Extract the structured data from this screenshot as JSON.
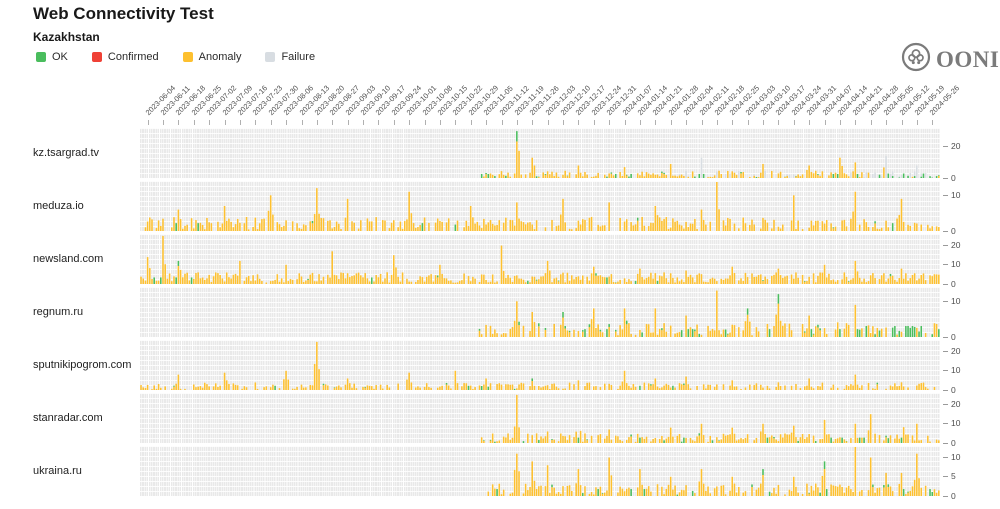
{
  "header": {
    "title": "Web Connectivity Test",
    "subtitle": "Kazakhstan"
  },
  "legend": [
    {
      "label": "OK",
      "color": "#4ABD5D"
    },
    {
      "label": "Confirmed",
      "color": "#EF4136"
    },
    {
      "label": "Anomaly",
      "color": "#FDC02F"
    },
    {
      "label": "Failure",
      "color": "#D8DDE2"
    }
  ],
  "logo": {
    "text": "OONI"
  },
  "chart_data": {
    "type": "bar",
    "title": "Web Connectivity Test",
    "subtitle": "Kazakhstan",
    "x_unit": "day (one stacked bar per day; x axis labeled weekly)",
    "legend_position": "top",
    "grid": true,
    "colors": {
      "ok": "#4ABD5D",
      "confirmed": "#EF4136",
      "anomaly": "#FDC02F",
      "failure": "#D8DDE2"
    },
    "x_tick_labels": [
      "2023-06-04",
      "2023-06-11",
      "2023-06-18",
      "2023-06-25",
      "2023-07-02",
      "2023-07-09",
      "2023-07-16",
      "2023-07-23",
      "2023-07-30",
      "2023-08-06",
      "2023-08-13",
      "2023-08-20",
      "2023-08-27",
      "2023-09-03",
      "2023-09-10",
      "2023-09-17",
      "2023-09-24",
      "2023-10-01",
      "2023-10-08",
      "2023-10-15",
      "2023-10-22",
      "2023-10-29",
      "2023-11-05",
      "2023-11-12",
      "2023-11-19",
      "2023-11-26",
      "2023-12-03",
      "2023-12-10",
      "2023-12-17",
      "2023-12-24",
      "2023-12-31",
      "2024-01-07",
      "2024-01-14",
      "2024-01-21",
      "2024-01-28",
      "2024-02-04",
      "2024-02-11",
      "2024-02-18",
      "2024-02-25",
      "2024-03-03",
      "2024-03-10",
      "2024-03-17",
      "2024-03-24",
      "2024-03-31",
      "2024-04-07",
      "2024-04-14",
      "2024-04-21",
      "2024-04-28",
      "2024-05-05",
      "2024-05-12",
      "2024-05-19",
      "2024-05-26"
    ],
    "sites": [
      {
        "name": "kz.tsargrad.tv",
        "ylim": 32,
        "yticks": [
          0,
          20
        ],
        "active_from_week": 22,
        "density": 0.78,
        "base": 2.6,
        "ok_ratio": 0.22,
        "spikes": [
          [
            24,
            30
          ],
          [
            25,
            13
          ],
          [
            28,
            8
          ],
          [
            31,
            7
          ],
          [
            34,
            9
          ],
          [
            36,
            13,
            "failure"
          ],
          [
            40,
            9
          ],
          [
            43,
            8
          ],
          [
            45,
            13
          ],
          [
            46,
            10
          ],
          [
            48,
            14,
            "failure"
          ],
          [
            50,
            8,
            "failure"
          ]
        ],
        "failure": {
          "from_week": 35,
          "ratio": 0.25,
          "heavy_from_week": 47,
          "heavy_ratio": 0.8
        }
      },
      {
        "name": "meduza.io",
        "ylim": 14,
        "yticks": [
          0,
          10
        ],
        "active_from_week": 0,
        "density": 0.72,
        "base": 2.2,
        "ok_ratio": 0.07,
        "spikes": [
          [
            2,
            6
          ],
          [
            5,
            7
          ],
          [
            8,
            10
          ],
          [
            11,
            12
          ],
          [
            13,
            9
          ],
          [
            17,
            11
          ],
          [
            21,
            7
          ],
          [
            24,
            8
          ],
          [
            27,
            9
          ],
          [
            30,
            8
          ],
          [
            33,
            7
          ],
          [
            36,
            6
          ],
          [
            37,
            14
          ],
          [
            42,
            10
          ],
          [
            46,
            11
          ],
          [
            49,
            9
          ]
        ]
      },
      {
        "name": "newsland.com",
        "ylim": 26,
        "yticks": [
          0,
          10,
          20
        ],
        "active_from_week": 0,
        "density": 0.92,
        "base": 3.4,
        "ok_ratio": 0.06,
        "spikes": [
          [
            0,
            14
          ],
          [
            1,
            25
          ],
          [
            2,
            12
          ],
          [
            6,
            12
          ],
          [
            9,
            10
          ],
          [
            12,
            17
          ],
          [
            16,
            15
          ],
          [
            19,
            10
          ],
          [
            23,
            20
          ],
          [
            26,
            12
          ],
          [
            29,
            9
          ],
          [
            32,
            8
          ],
          [
            35,
            7
          ],
          [
            38,
            9
          ],
          [
            41,
            8
          ],
          [
            44,
            10
          ],
          [
            46,
            12
          ],
          [
            49,
            8
          ]
        ]
      },
      {
        "name": "regnum.ru",
        "ylim": 14,
        "yticks": [
          0,
          10
        ],
        "active_from_week": 22,
        "density": 0.62,
        "base": 2.2,
        "ok_ratio": 0.25,
        "spikes": [
          [
            24,
            10
          ],
          [
            25,
            7
          ],
          [
            27,
            7
          ],
          [
            29,
            8
          ],
          [
            31,
            8
          ],
          [
            33,
            8
          ],
          [
            35,
            6
          ],
          [
            37,
            13
          ],
          [
            39,
            8
          ],
          [
            41,
            12
          ],
          [
            43,
            6
          ],
          [
            45,
            8
          ],
          [
            46,
            9
          ]
        ],
        "ok_end": {
          "from_week": 47,
          "ratio": 0.65
        }
      },
      {
        "name": "sputnikipogrom.com",
        "ylim": 26,
        "yticks": [
          0,
          10,
          20
        ],
        "active_from_week": 0,
        "density": 0.68,
        "base": 2.2,
        "ok_ratio": 0.08,
        "spikes": [
          [
            2,
            8
          ],
          [
            5,
            9
          ],
          [
            9,
            10
          ],
          [
            11,
            25
          ],
          [
            13,
            6
          ],
          [
            17,
            9
          ],
          [
            20,
            10
          ],
          [
            22,
            6
          ],
          [
            25,
            6
          ],
          [
            28,
            5
          ],
          [
            31,
            10
          ],
          [
            33,
            6
          ],
          [
            35,
            7
          ],
          [
            38,
            5
          ],
          [
            41,
            4
          ],
          [
            43,
            6
          ],
          [
            46,
            8
          ],
          [
            49,
            4
          ]
        ]
      },
      {
        "name": "stanradar.com",
        "ylim": 26,
        "yticks": [
          0,
          10,
          20
        ],
        "active_from_week": 22,
        "density": 0.78,
        "base": 2.8,
        "ok_ratio": 0.18,
        "spikes": [
          [
            24,
            25
          ],
          [
            26,
            6
          ],
          [
            28,
            13
          ],
          [
            30,
            7
          ],
          [
            32,
            10
          ],
          [
            34,
            8
          ],
          [
            36,
            10
          ],
          [
            38,
            8
          ],
          [
            40,
            10
          ],
          [
            42,
            9
          ],
          [
            44,
            12
          ],
          [
            46,
            10
          ],
          [
            47,
            15
          ],
          [
            49,
            13
          ],
          [
            50,
            10
          ]
        ]
      },
      {
        "name": "ukraina.ru",
        "ylim": 13,
        "yticks": [
          0,
          5,
          10
        ],
        "active_from_week": 22,
        "density": 0.75,
        "base": 1.8,
        "ok_ratio": 0.12,
        "spikes": [
          [
            24,
            11
          ],
          [
            25,
            9
          ],
          [
            26,
            8
          ],
          [
            28,
            7
          ],
          [
            30,
            10
          ],
          [
            32,
            7
          ],
          [
            34,
            5
          ],
          [
            36,
            7
          ],
          [
            38,
            5
          ],
          [
            40,
            7
          ],
          [
            42,
            5
          ],
          [
            44,
            9
          ],
          [
            46,
            13
          ],
          [
            47,
            10
          ],
          [
            48,
            6
          ],
          [
            49,
            6
          ],
          [
            50,
            11
          ]
        ]
      }
    ]
  }
}
